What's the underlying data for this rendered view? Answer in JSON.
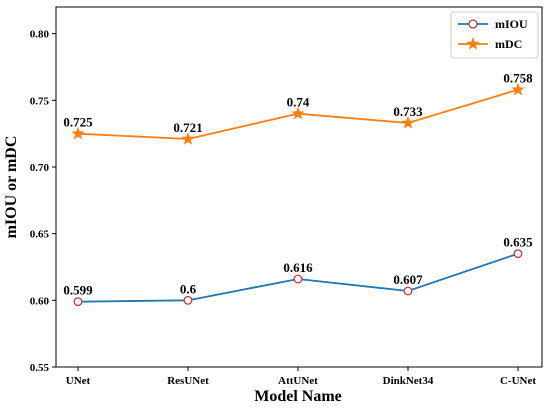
{
  "chart_data": {
    "type": "line",
    "categories": [
      "UNet",
      "ResUNet",
      "AttUNet",
      "DinkNet34",
      "C-UNet"
    ],
    "series": [
      {
        "name": "mIOU",
        "values": [
          0.599,
          0.6,
          0.616,
          0.607,
          0.635
        ],
        "labels": [
          "0.599",
          "0.6",
          "0.616",
          "0.607",
          "0.635"
        ],
        "color": "#1f77b4",
        "marker": "circle"
      },
      {
        "name": "mDC",
        "values": [
          0.725,
          0.721,
          0.74,
          0.733,
          0.758
        ],
        "labels": [
          "0.725",
          "0.721",
          "0.74",
          "0.733",
          "0.758"
        ],
        "color": "#ff7f0e",
        "marker": "star"
      }
    ],
    "title": "",
    "xlabel": "Model Name",
    "ylabel": "mIOU or mDC",
    "ylim": [
      0.55,
      0.82
    ],
    "yticks": [
      "0.55",
      "0.60",
      "0.65",
      "0.70",
      "0.75",
      "0.80"
    ],
    "grid": false,
    "legend": "top-right"
  }
}
